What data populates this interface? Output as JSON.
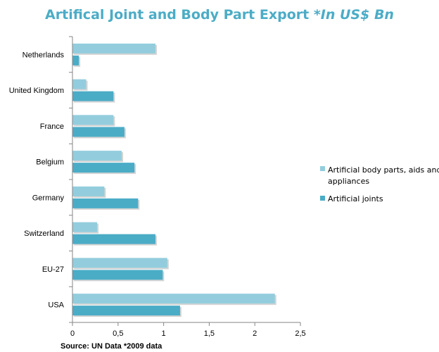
{
  "chart_data": {
    "type": "bar",
    "orientation": "horizontal",
    "title": "Artifical Joint and Body Part Export",
    "title_suffix": "*In US$ Bn",
    "categories": [
      "Netherlands",
      "United Kingdom",
      "France",
      "Belgium",
      "Germany",
      "Switzerland",
      "EU-27",
      "USA"
    ],
    "series": [
      {
        "name": "Artificial body parts, aids and appliances",
        "color": "#93cddd",
        "values": [
          0.91,
          0.15,
          0.45,
          0.54,
          0.35,
          0.27,
          1.04,
          2.22
        ]
      },
      {
        "name": "Artificial joints",
        "color": "#4bacc6",
        "values": [
          0.07,
          0.45,
          0.57,
          0.68,
          0.72,
          0.91,
          0.99,
          1.18
        ]
      }
    ],
    "x_ticks": [
      "0",
      "0,5",
      "1",
      "1,5",
      "2",
      "2,5"
    ],
    "xlim": [
      0,
      2.5
    ],
    "grid": false,
    "legend_position": "right",
    "source": "Source: UN Data *2009 data"
  }
}
